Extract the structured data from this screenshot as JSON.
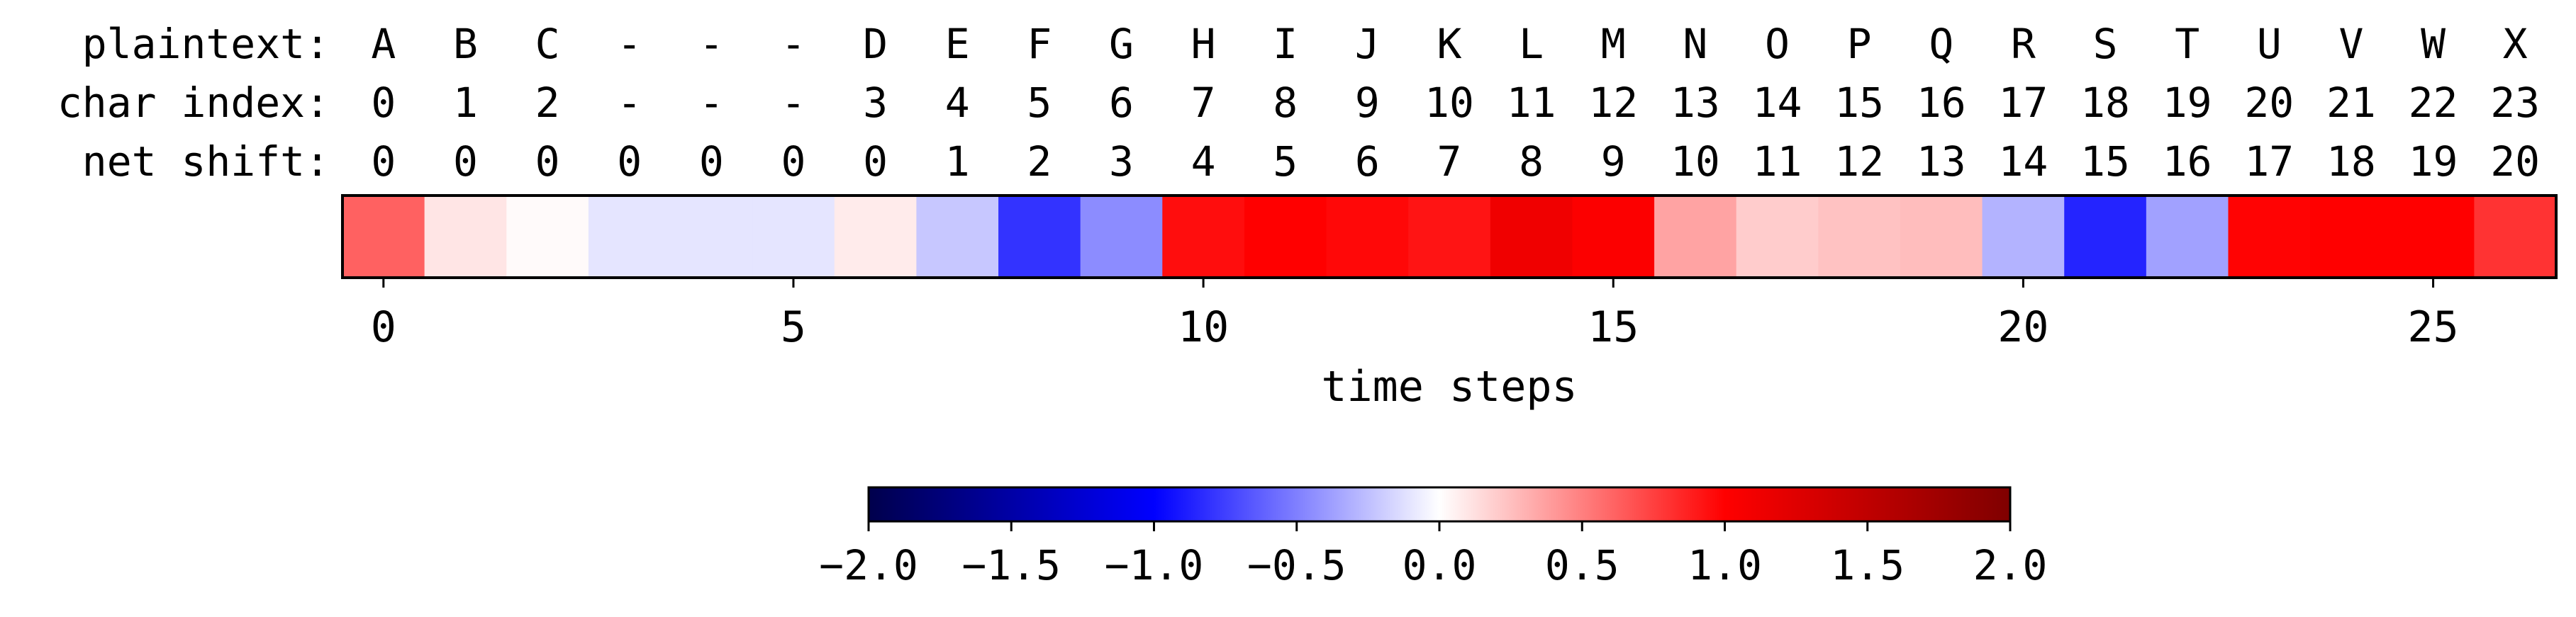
{
  "row_labels": {
    "plaintext": "plaintext:",
    "char_index": "char index:",
    "net_shift": "net shift:"
  },
  "columns": [
    {
      "plaintext": "A",
      "char_index": "0",
      "net_shift": "0"
    },
    {
      "plaintext": "B",
      "char_index": "1",
      "net_shift": "0"
    },
    {
      "plaintext": "C",
      "char_index": "2",
      "net_shift": "0"
    },
    {
      "plaintext": "-",
      "char_index": "-",
      "net_shift": "0"
    },
    {
      "plaintext": "-",
      "char_index": "-",
      "net_shift": "0"
    },
    {
      "plaintext": "-",
      "char_index": "-",
      "net_shift": "0"
    },
    {
      "plaintext": "D",
      "char_index": "3",
      "net_shift": "0"
    },
    {
      "plaintext": "E",
      "char_index": "4",
      "net_shift": "1"
    },
    {
      "plaintext": "F",
      "char_index": "5",
      "net_shift": "2"
    },
    {
      "plaintext": "G",
      "char_index": "6",
      "net_shift": "3"
    },
    {
      "plaintext": "H",
      "char_index": "7",
      "net_shift": "4"
    },
    {
      "plaintext": "I",
      "char_index": "8",
      "net_shift": "5"
    },
    {
      "plaintext": "J",
      "char_index": "9",
      "net_shift": "6"
    },
    {
      "plaintext": "K",
      "char_index": "10",
      "net_shift": "7"
    },
    {
      "plaintext": "L",
      "char_index": "11",
      "net_shift": "8"
    },
    {
      "plaintext": "M",
      "char_index": "12",
      "net_shift": "9"
    },
    {
      "plaintext": "N",
      "char_index": "13",
      "net_shift": "10"
    },
    {
      "plaintext": "O",
      "char_index": "14",
      "net_shift": "11"
    },
    {
      "plaintext": "P",
      "char_index": "15",
      "net_shift": "12"
    },
    {
      "plaintext": "Q",
      "char_index": "16",
      "net_shift": "13"
    },
    {
      "plaintext": "R",
      "char_index": "17",
      "net_shift": "14"
    },
    {
      "plaintext": "S",
      "char_index": "18",
      "net_shift": "15"
    },
    {
      "plaintext": "T",
      "char_index": "19",
      "net_shift": "16"
    },
    {
      "plaintext": "U",
      "char_index": "20",
      "net_shift": "17"
    },
    {
      "plaintext": "V",
      "char_index": "21",
      "net_shift": "18"
    },
    {
      "plaintext": "W",
      "char_index": "22",
      "net_shift": "19"
    },
    {
      "plaintext": "X",
      "char_index": "23",
      "net_shift": "20"
    }
  ],
  "chart_data": {
    "type": "heatmap",
    "colormap": "seismic",
    "values": [
      0.62,
      0.1,
      0.02,
      -0.1,
      -0.1,
      -0.1,
      0.08,
      -0.22,
      -0.8,
      -0.45,
      0.95,
      1.0,
      0.97,
      0.92,
      1.12,
      1.02,
      0.36,
      0.2,
      0.24,
      0.26,
      -0.3,
      -0.86,
      -0.37,
      0.99,
      1.0,
      1.0,
      0.8
    ],
    "x_ticks": [
      0,
      5,
      10,
      15,
      20,
      25
    ],
    "xlabel": "time steps",
    "vmin": -2.0,
    "vmax": 2.0,
    "colorbar_ticks": [
      "−2.0",
      "−1.5",
      "−1.0",
      "−0.5",
      "0.0",
      "0.5",
      "1.0",
      "1.5",
      "2.0"
    ],
    "colorbar_tick_values": [
      -2.0,
      -1.5,
      -1.0,
      -0.5,
      0.0,
      0.5,
      1.0,
      1.5,
      2.0
    ]
  }
}
